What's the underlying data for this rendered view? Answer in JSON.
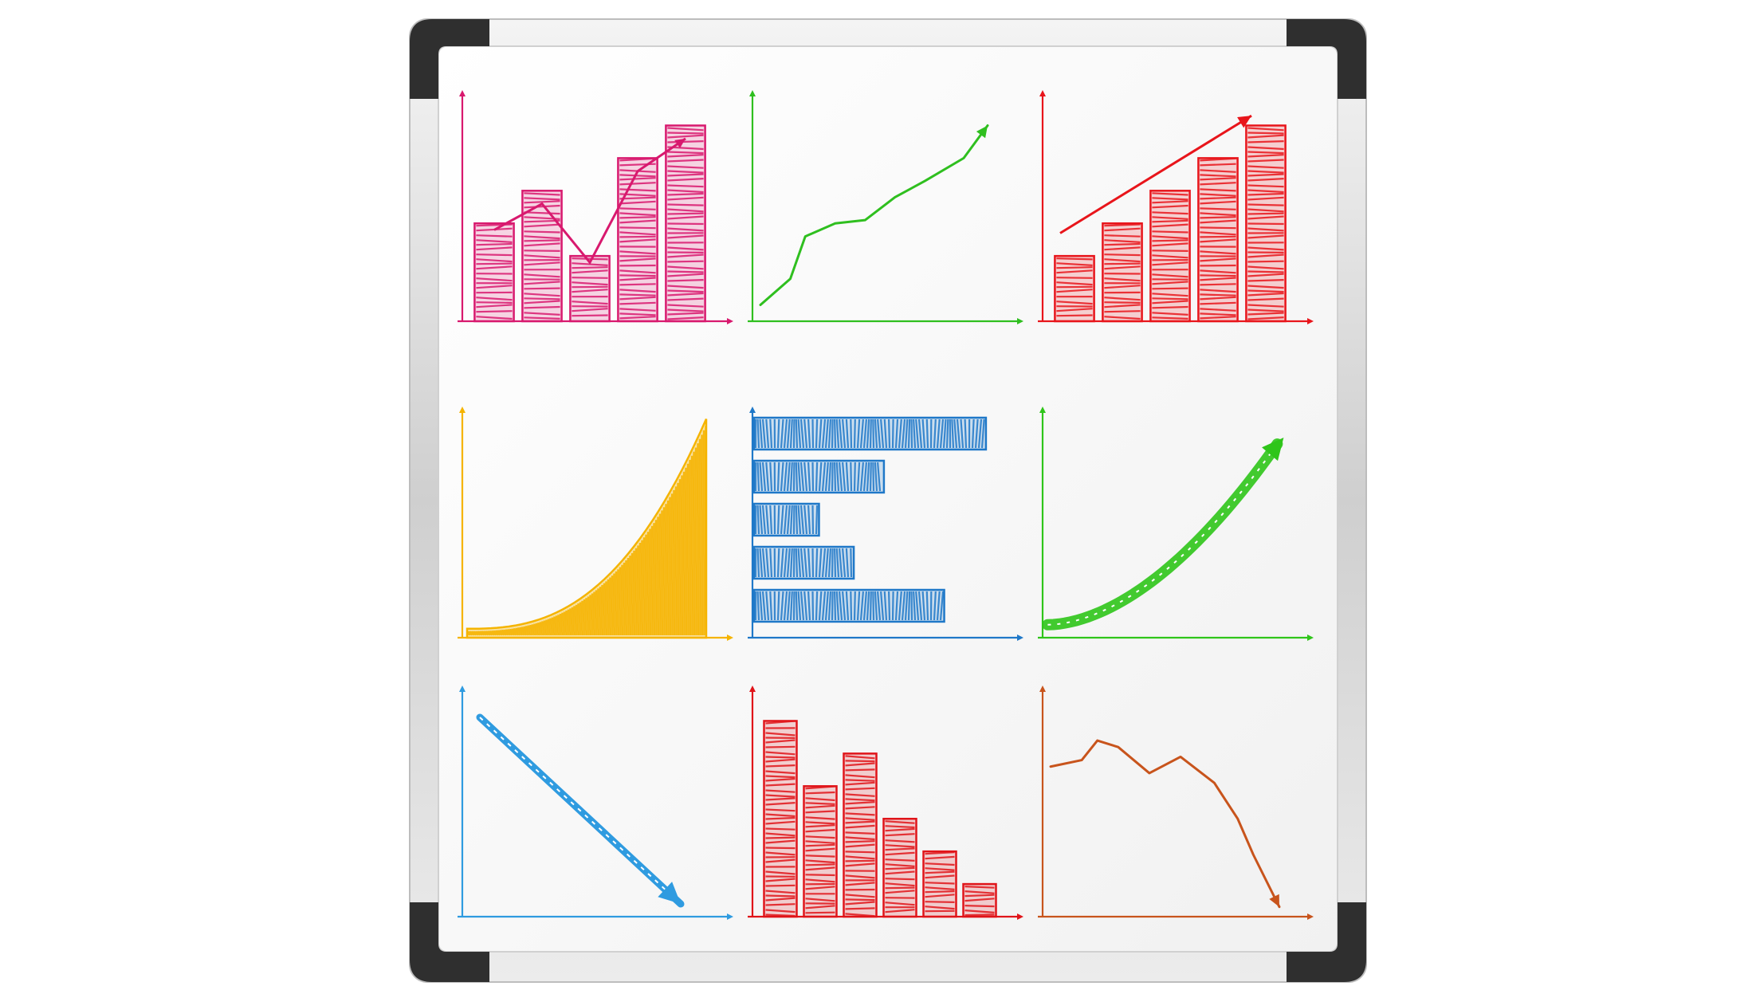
{
  "colors": {
    "magenta": "#d8196e",
    "green": "#2fbf1f",
    "red": "#e8151b",
    "yellow": "#f5b400",
    "blue": "#1f78c8",
    "lime": "#2fc51a",
    "sky": "#2f9be0",
    "red_dark": "#e01419",
    "rust": "#c8541c",
    "board": "#f8f8f8",
    "frame": "#d9d9d9",
    "corner": "#2b2b2b"
  },
  "chart_data": [
    {
      "panel": "top-left",
      "type": "bar",
      "color": "magenta",
      "values": [
        3,
        4,
        2,
        5,
        6
      ],
      "ylim": [
        0,
        6.5
      ],
      "overlay": {
        "type": "line",
        "values": [
          2.8,
          3.6,
          1.8,
          4.6,
          5.6
        ],
        "arrow": true
      }
    },
    {
      "panel": "top-center",
      "type": "line",
      "color": "green",
      "arrow": true,
      "points": [
        [
          0,
          0.5
        ],
        [
          1,
          1.3
        ],
        [
          1.5,
          2.6
        ],
        [
          2.5,
          3.0
        ],
        [
          3.5,
          3.1
        ],
        [
          4.5,
          3.8
        ],
        [
          5.5,
          4.3
        ],
        [
          6.8,
          5.0
        ],
        [
          7.6,
          6.0
        ]
      ],
      "xlim": [
        0,
        8
      ],
      "ylim": [
        0,
        6.5
      ]
    },
    {
      "panel": "top-right",
      "type": "bar",
      "color": "red",
      "values": [
        2,
        3,
        4,
        5,
        6
      ],
      "ylim": [
        0,
        6.5
      ],
      "overlay": {
        "type": "arrow",
        "from": [
          0.2,
          2.7
        ],
        "to": [
          4.2,
          6.3
        ]
      }
    },
    {
      "panel": "middle-left",
      "type": "area",
      "color": "yellow",
      "curve": "exponential",
      "x": [
        0,
        1
      ],
      "y_start": 0.04,
      "y_end": 0.98
    },
    {
      "panel": "middle-center",
      "type": "bar",
      "orientation": "horizontal",
      "color": "blue",
      "values": [
        10,
        5.6,
        2.8,
        4.3,
        8.2
      ],
      "xlim": [
        0,
        11
      ]
    },
    {
      "panel": "middle-right",
      "type": "line",
      "color": "lime",
      "curve": "exponential",
      "arrow": true,
      "x": [
        0.02,
        0.92
      ],
      "y_start": 0.06,
      "y_end": 0.9
    },
    {
      "panel": "bottom-left",
      "type": "line",
      "color": "sky",
      "arrow": true,
      "points": [
        [
          0.04,
          0.94
        ],
        [
          0.88,
          0.06
        ]
      ],
      "xlim": [
        0,
        1
      ],
      "ylim": [
        0,
        1
      ]
    },
    {
      "panel": "bottom-center",
      "type": "bar",
      "color": "red_dark",
      "values": [
        6,
        4,
        5,
        3,
        2,
        1
      ],
      "ylim": [
        0,
        6.5
      ]
    },
    {
      "panel": "bottom-right",
      "type": "line",
      "color": "rust",
      "arrow": true,
      "points": [
        [
          0,
          4.6
        ],
        [
          1.2,
          4.8
        ],
        [
          1.8,
          5.4
        ],
        [
          2.6,
          5.2
        ],
        [
          3.8,
          4.4
        ],
        [
          5.0,
          4.9
        ],
        [
          6.3,
          4.1
        ],
        [
          7.2,
          3.0
        ],
        [
          7.8,
          1.9
        ],
        [
          8.8,
          0.3
        ]
      ],
      "xlim": [
        0,
        9.2
      ],
      "ylim": [
        0,
        6.5
      ]
    }
  ]
}
